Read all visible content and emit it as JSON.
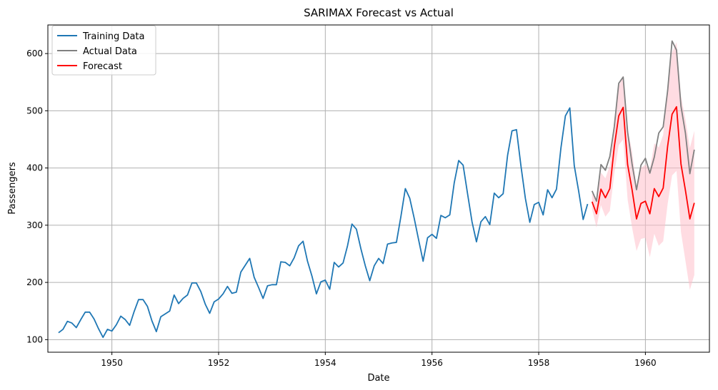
{
  "chart_data": {
    "type": "line",
    "title": "SARIMAX Forecast vs Actual",
    "xlabel": "Date",
    "ylabel": "Passengers",
    "xlim": [
      1948.8,
      1961.2
    ],
    "ylim": [
      78,
      650
    ],
    "x_ticks": [
      1950,
      1952,
      1954,
      1956,
      1958,
      1960
    ],
    "x_tick_labels": [
      "1950",
      "1952",
      "1954",
      "1956",
      "1958",
      "1960"
    ],
    "y_ticks": [
      100,
      200,
      300,
      400,
      500,
      600
    ],
    "y_tick_labels": [
      "100",
      "200",
      "300",
      "400",
      "500",
      "600"
    ],
    "grid": true,
    "legend_position": "top-left",
    "series": [
      {
        "name": "Training Data",
        "color": "#1f77b4",
        "x_start": 1949.0,
        "x_step": 0.0833333,
        "values": [
          112,
          118,
          132,
          129,
          121,
          135,
          148,
          148,
          136,
          119,
          104,
          118,
          115,
          126,
          141,
          135,
          125,
          149,
          170,
          170,
          158,
          133,
          114,
          140,
          145,
          150,
          178,
          163,
          172,
          178,
          199,
          199,
          184,
          162,
          146,
          166,
          171,
          180,
          193,
          181,
          183,
          218,
          230,
          242,
          209,
          191,
          172,
          194,
          196,
          196,
          236,
          235,
          229,
          243,
          264,
          272,
          237,
          211,
          180,
          201,
          204,
          188,
          235,
          227,
          234,
          264,
          302,
          293,
          259,
          229,
          203,
          229,
          242,
          233,
          267,
          269,
          270,
          315,
          364,
          347,
          312,
          274,
          237,
          278,
          284,
          277,
          317,
          313,
          318,
          374,
          413,
          405,
          355,
          306,
          271,
          306,
          315,
          301,
          356,
          348,
          355,
          422,
          465,
          467,
          404,
          347,
          305,
          336,
          340,
          318,
          362,
          348,
          363,
          435,
          491,
          505,
          404,
          359,
          310,
          337
        ]
      },
      {
        "name": "Actual Data",
        "color": "#808080",
        "x_start": 1959.0,
        "x_step": 0.0833333,
        "values": [
          360,
          342,
          406,
          396,
          420,
          472,
          548,
          559,
          463,
          407,
          362,
          405,
          417,
          391,
          419,
          461,
          472,
          535,
          622,
          606,
          508,
          461,
          390,
          432
        ]
      },
      {
        "name": "Forecast",
        "color": "#ff0000",
        "x_start": 1959.0,
        "x_step": 0.0833333,
        "values": [
          341,
          320,
          363,
          348,
          364,
          437,
          491,
          506,
          406,
          362,
          311,
          338,
          342,
          320,
          364,
          350,
          365,
          438,
          494,
          507,
          407,
          361,
          311,
          339
        ],
        "ci_lower": [
          328,
          296,
          335,
          315,
          325,
          390,
          440,
          450,
          345,
          296,
          255,
          276,
          278,
          244,
          285,
          264,
          272,
          337,
          387,
          395,
          288,
          238,
          187,
          213
        ],
        "ci_upper": [
          356,
          345,
          392,
          382,
          404,
          484,
          542,
          562,
          467,
          429,
          367,
          400,
          406,
          397,
          443,
          436,
          458,
          539,
          602,
          620,
          526,
          485,
          435,
          465
        ],
        "ci_color": "#ffc0cb"
      }
    ]
  }
}
